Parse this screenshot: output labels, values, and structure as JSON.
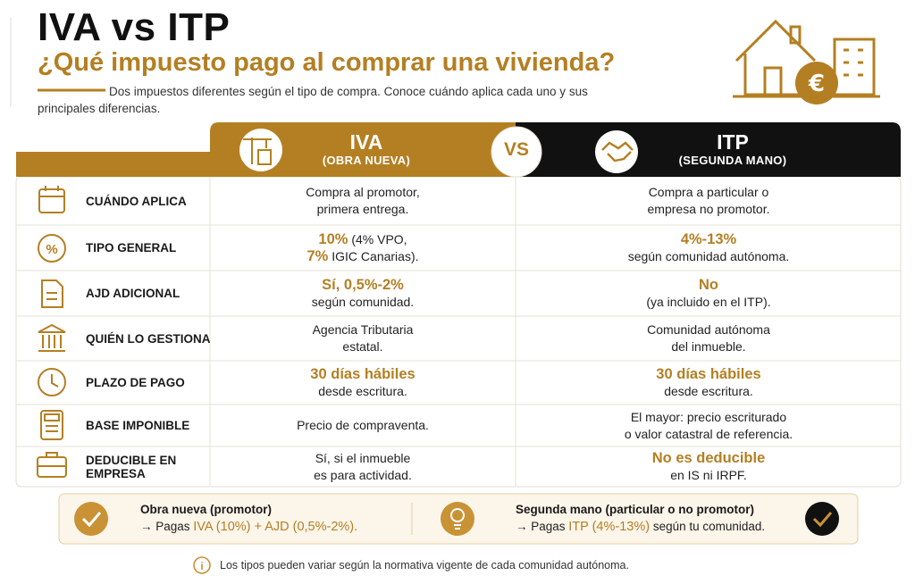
{
  "header": {
    "title": "IVA vs ITP",
    "subtitle": "¿Qué impuesto pago al comprar una vivienda?",
    "intro": "Dos impuestos diferentes según el tipo de compra. Conoce cuándo aplica cada uno y sus principales diferencias."
  },
  "table": {
    "iva": {
      "name": "IVA",
      "sub": "(OBRA NUEVA)"
    },
    "vs": "VS",
    "itp": {
      "name": "ITP",
      "sub": "(SEGUNDA MANO)"
    },
    "rows": [
      {
        "label": "CUÁNDO APLICA",
        "iva": [
          [
            "Compra al promotor,"
          ],
          [
            "primera entrega."
          ]
        ],
        "itp": [
          [
            "Compra a particular o"
          ],
          [
            "empresa no promotor."
          ]
        ]
      },
      {
        "label": "TIPO GENERAL",
        "iva": [
          [
            {
              "em": "10%"
            },
            " (4% VPO,"
          ],
          [
            {
              "em": "7%"
            },
            " IGIC Canarias)."
          ]
        ],
        "itp": [
          [
            {
              "em": "4%-13%"
            }
          ],
          [
            "según comunidad autónoma."
          ]
        ]
      },
      {
        "label": "AJD ADICIONAL",
        "iva": [
          [
            {
              "em": "Sí, 0,5%-2%"
            }
          ],
          [
            "según comunidad."
          ]
        ],
        "itp": [
          [
            {
              "em": "No"
            }
          ],
          [
            "(ya incluido en el ITP)."
          ]
        ]
      },
      {
        "label": "QUIÉN LO GESTIONA",
        "iva": [
          [
            "Agencia Tributaria"
          ],
          [
            "estatal."
          ]
        ],
        "itp": [
          [
            "Comunidad autónoma"
          ],
          [
            "del inmueble."
          ]
        ]
      },
      {
        "label": "PLAZO DE PAGO",
        "iva": [
          [
            {
              "em": "30 días hábiles"
            }
          ],
          [
            "desde escritura."
          ]
        ],
        "itp": [
          [
            {
              "em": "30 días hábiles"
            }
          ],
          [
            "desde escritura."
          ]
        ]
      },
      {
        "label": "BASE IMPONIBLE",
        "iva": [
          [
            "Precio de compraventa."
          ]
        ],
        "itp": [
          [
            "El mayor: precio escriturado"
          ],
          [
            "o valor catastral de referencia."
          ]
        ]
      },
      {
        "label": "DEDUCIBLE EN EMPRESA",
        "iva": [
          [
            "Sí, si el inmueble"
          ],
          [
            "es para actividad."
          ]
        ],
        "itp": [
          [
            {
              "em": "No es deducible"
            }
          ],
          [
            "en IS ni IRPF."
          ]
        ]
      }
    ]
  },
  "summary": [
    {
      "title": "Obra nueva (promotor)",
      "line": [
        "→ Pagas ",
        {
          "em": "IVA (10%) + AJD (0,5%-2%)."
        }
      ]
    },
    {
      "title": "Segunda mano (particular o no promotor)",
      "line": [
        "→ Pagas ",
        {
          "em": "ITP (4%-13%)"
        },
        " según tu comunidad."
      ]
    }
  ],
  "note": "Los tipos pueden variar según la normativa vigente de cada comunidad autónoma."
}
